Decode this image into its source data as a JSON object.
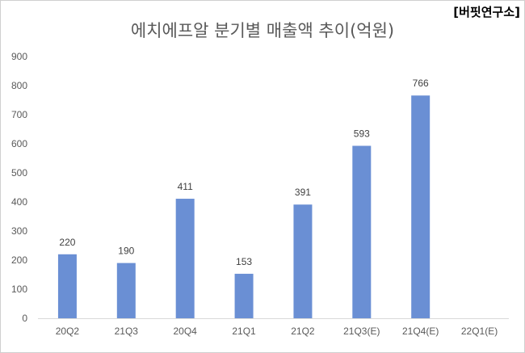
{
  "watermark": "[버핏연구소]",
  "chart_data": {
    "type": "bar",
    "title": "에치에프알 분기별 매출액 추이(억원)",
    "categories": [
      "20Q2",
      "21Q3",
      "20Q4",
      "21Q1",
      "21Q2",
      "21Q3(E)",
      "21Q4(E)",
      "22Q1(E)"
    ],
    "values": [
      220,
      190,
      411,
      153,
      391,
      593,
      766,
      null
    ],
    "data_labels": [
      "220",
      "190",
      "411",
      "153",
      "391",
      "593",
      "766",
      ""
    ],
    "y_ticks": [
      "0",
      "100",
      "200",
      "300",
      "400",
      "500",
      "600",
      "700",
      "800",
      "900"
    ],
    "ylim": [
      0,
      900
    ],
    "grid": false,
    "legend": "none",
    "bar_color": "#6a8fd4"
  }
}
